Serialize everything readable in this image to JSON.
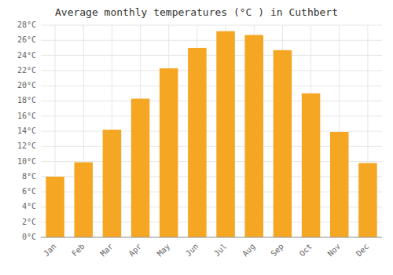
{
  "chart_data": {
    "type": "bar",
    "title": "Average monthly temperatures (°C ) in Cuthbert",
    "categories": [
      "Jan",
      "Feb",
      "Mar",
      "Apr",
      "May",
      "Jun",
      "Jul",
      "Aug",
      "Sep",
      "Oct",
      "Nov",
      "Dec"
    ],
    "values": [
      8.0,
      9.9,
      14.2,
      18.3,
      22.3,
      25.0,
      27.2,
      26.7,
      24.7,
      19.0,
      13.9,
      9.8
    ],
    "color": "#F5A623",
    "ylim": [
      0,
      28
    ],
    "yticks": [
      {
        "value": 0,
        "label": "0°C"
      },
      {
        "value": 2,
        "label": "2°C"
      },
      {
        "value": 4,
        "label": "4°C"
      },
      {
        "value": 6,
        "label": "6°C"
      },
      {
        "value": 8,
        "label": "8°C"
      },
      {
        "value": 10,
        "label": "10°C"
      },
      {
        "value": 12,
        "label": "12°C"
      },
      {
        "value": 14,
        "label": "14°C"
      },
      {
        "value": 16,
        "label": "16°C"
      },
      {
        "value": 18,
        "label": "18°C"
      },
      {
        "value": 20,
        "label": "20°C"
      },
      {
        "value": 22,
        "label": "22°C"
      },
      {
        "value": 24,
        "label": "24°C"
      },
      {
        "value": 26,
        "label": "26°C"
      },
      {
        "value": 28,
        "label": "28°C"
      }
    ],
    "grid": true
  }
}
